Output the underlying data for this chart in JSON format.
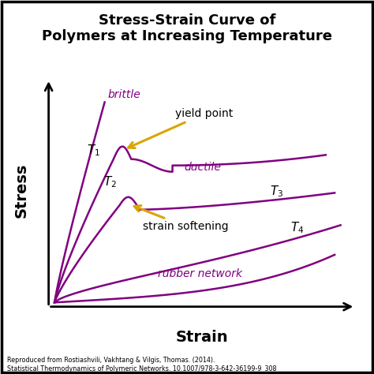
{
  "title": "Stress-Strain Curve of\nPolymers at Increasing Temperature",
  "xlabel": "Strain",
  "ylabel": "Stress",
  "curve_color": "#800080",
  "background_color": "#FFFFFF",
  "title_fontsize": 13,
  "axis_label_fontsize": 14,
  "annotation_fontsize": 10,
  "label_fontsize": 11,
  "arrow_color": "#DAA500",
  "footnote": "Reproduced from Rostiashvili, Vakhtang & Vilgis, Thomas. (2014).\nStatistical Thermodynamics of Polymeric Networks. 10.1007/978-3-642-36199-9_308"
}
